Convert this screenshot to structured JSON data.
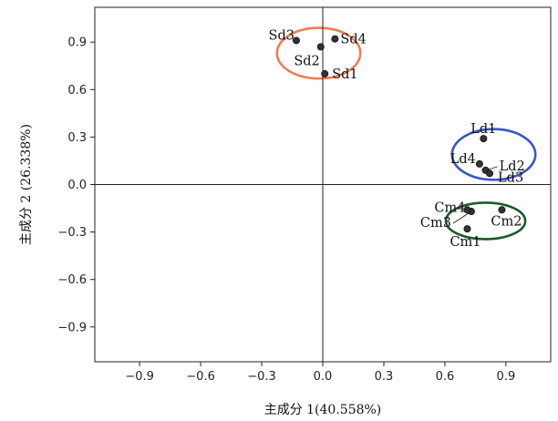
{
  "chart_data": {
    "type": "scatter",
    "xlabel": "主成分 1(40.558%)",
    "ylabel": "主成分 2 (26.338%)",
    "xlim": [
      -1.12,
      1.12
    ],
    "ylim": [
      -1.12,
      1.12
    ],
    "xticks": [
      -0.9,
      -0.6,
      -0.3,
      0.0,
      0.3,
      0.6,
      0.9
    ],
    "yticks": [
      0.9,
      0.6,
      0.3,
      0.0,
      -0.3,
      -0.6,
      -0.9
    ],
    "xtick_labels": [
      "−0.9",
      "−0.6",
      "−0.3",
      "0.0",
      "0.3",
      "0.6",
      "0.9"
    ],
    "ytick_labels": [
      "0.9",
      "0.6",
      "0.3",
      "0.0",
      "−0.3",
      "−0.6",
      "−0.9"
    ],
    "reference_lines": {
      "x": 0,
      "y": 0
    },
    "grid": false,
    "points": [
      {
        "label": "Sd1",
        "x": 0.01,
        "y": 0.7
      },
      {
        "label": "Sd2",
        "x": -0.01,
        "y": 0.87
      },
      {
        "label": "Sd3",
        "x": -0.13,
        "y": 0.91
      },
      {
        "label": "Sd4",
        "x": 0.06,
        "y": 0.92
      },
      {
        "label": "Ld1",
        "x": 0.79,
        "y": 0.29
      },
      {
        "label": "Ld2",
        "x": 0.8,
        "y": 0.09
      },
      {
        "label": "Ld3",
        "x": 0.82,
        "y": 0.07
      },
      {
        "label": "Ld4",
        "x": 0.77,
        "y": 0.13
      },
      {
        "label": "Cm1",
        "x": 0.71,
        "y": -0.28
      },
      {
        "label": "Cm2",
        "x": 0.88,
        "y": -0.16
      },
      {
        "label": "Cm3",
        "x": 0.73,
        "y": -0.17
      },
      {
        "label": "Cm4",
        "x": 0.71,
        "y": -0.16
      }
    ],
    "groups": [
      {
        "members": [
          "Sd1",
          "Sd2",
          "Sd3",
          "Sd4"
        ],
        "color": "#f07c55"
      },
      {
        "members": [
          "Ld1",
          "Ld2",
          "Ld3",
          "Ld4"
        ],
        "color": "#3a55c4"
      },
      {
        "members": [
          "Cm1",
          "Cm2",
          "Cm3",
          "Cm4"
        ],
        "color": "#1d5a2a"
      }
    ],
    "colors": {
      "point": "#333333",
      "axis": "#222222"
    }
  }
}
